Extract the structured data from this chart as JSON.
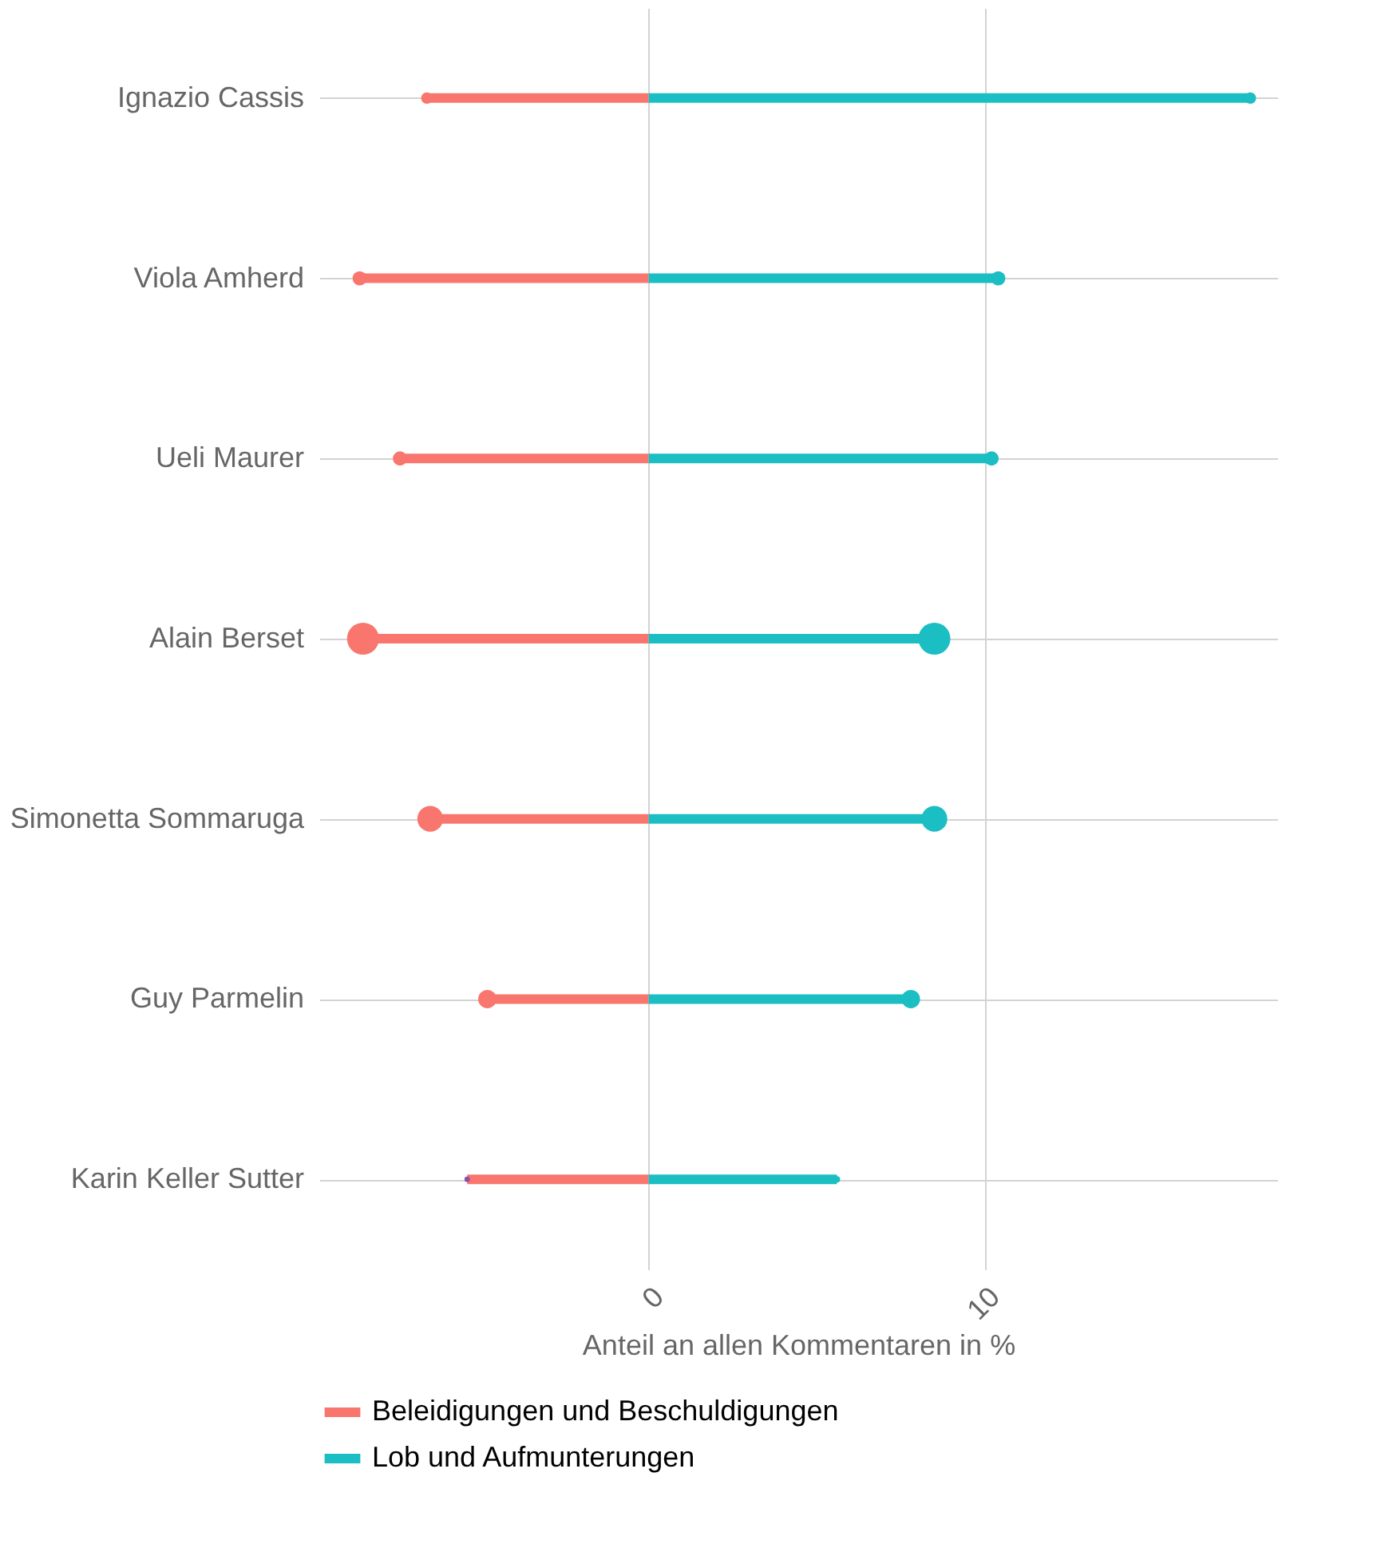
{
  "chart_data": {
    "type": "lollipop",
    "orientation": "horizontal",
    "categories": [
      "Ignazio Cassis",
      "Viola Amherd",
      "Ueli Maurer",
      "Alain Berset",
      "Simonetta Sommaruga",
      "Guy Parmelin",
      "Karin Keller Sutter"
    ],
    "series": [
      {
        "name": "Beleidigungen und Beschuldigungen",
        "color": "#f8766d",
        "values": [
          -6.6,
          -8.6,
          -7.4,
          -8.5,
          -6.5,
          -4.8,
          -5.4
        ],
        "sizes": [
          0.13,
          0.2,
          0.2,
          1,
          0.65,
          0.33,
          0.03
        ],
        "colors": [
          "#f8766d",
          "#f8766d",
          "#f8766d",
          "#f8766d",
          "#f8766d",
          "#f8766d",
          "#8e4fa8"
        ]
      },
      {
        "name": "Lob und Aufmunterungen",
        "color": "#1abec3",
        "values": [
          17.9,
          10.4,
          10.2,
          8.5,
          8.5,
          7.8,
          5.6
        ],
        "sizes": [
          0.13,
          0.2,
          0.2,
          1,
          0.65,
          0.33,
          0.04
        ]
      }
    ],
    "xlabel": "Anteil an allen Kommentaren in %",
    "xlim": [
      -9.8,
      18.7
    ],
    "xticks": [
      0,
      10
    ],
    "grid": true,
    "legend": "bottom",
    "marker": "circle"
  }
}
